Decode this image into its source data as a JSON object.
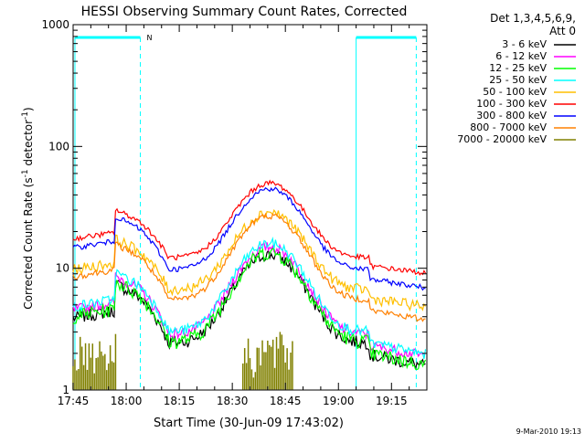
{
  "chart_data": {
    "type": "line",
    "title": "HESSI Observing Summary Count Rates, Corrected",
    "xlabel": "Start Time (30-Jun-09 17:43:02)",
    "ylabel": "Corrected Count Rate (s",
    "ylabel_sup1": "-1",
    "ylabel_mid": " detector",
    "ylabel_sup2": "-1",
    "ylabel_end": ")",
    "date_stamp": "9-Mar-2010 19:13",
    "x_unit": "minutes after 17:45",
    "xlim": [
      0,
      100
    ],
    "ylim": [
      1,
      1000
    ],
    "yscale": "log",
    "x_ticks": [
      "17:45",
      "18:00",
      "18:15",
      "18:30",
      "18:45",
      "19:00",
      "19:15"
    ],
    "y_ticks": [
      "1",
      "10",
      "100",
      "1000"
    ],
    "legend": {
      "title_line1": "Det 1,3,4,5,6,9,",
      "title_line2": "Att 0",
      "placement": "outside-right"
    },
    "markers": {
      "night_label": "N",
      "night_flag_color": "#00ffff",
      "periods": [
        [
          -1,
          19
        ],
        [
          80,
          97
        ]
      ]
    },
    "series": [
      {
        "name": "3 - 6 keV",
        "color": "#000000",
        "base": 0.7,
        "peak": 13,
        "noise": 0.12
      },
      {
        "name": "6 - 12 keV",
        "color": "#ff00ff",
        "base": 0.9,
        "peak": 15,
        "noise": 0.1
      },
      {
        "name": "12 - 25 keV",
        "color": "#00ff00",
        "base": 0.7,
        "peak": 13.5,
        "noise": 0.14
      },
      {
        "name": "25 - 50 keV",
        "color": "#00ffff",
        "base": 0.9,
        "peak": 16,
        "noise": 0.1
      },
      {
        "name": "50 - 100 keV",
        "color": "#ffbf00",
        "base": 3,
        "peak": 29,
        "noise": 0.1
      },
      {
        "name": "100 - 300 keV",
        "color": "#ff0000",
        "base": 6,
        "peak": 50,
        "noise": 0.05
      },
      {
        "name": "300 - 800 keV",
        "color": "#0000ff",
        "base": 4,
        "peak": 45,
        "noise": 0.05
      },
      {
        "name": "800 - 7000 keV",
        "color": "#ff8000",
        "base": 2,
        "peak": 27,
        "noise": 0.06
      },
      {
        "name": "7000 - 20000 keV",
        "color": "#808000",
        "base": 0,
        "peak": 3,
        "noise": 0
      }
    ]
  }
}
